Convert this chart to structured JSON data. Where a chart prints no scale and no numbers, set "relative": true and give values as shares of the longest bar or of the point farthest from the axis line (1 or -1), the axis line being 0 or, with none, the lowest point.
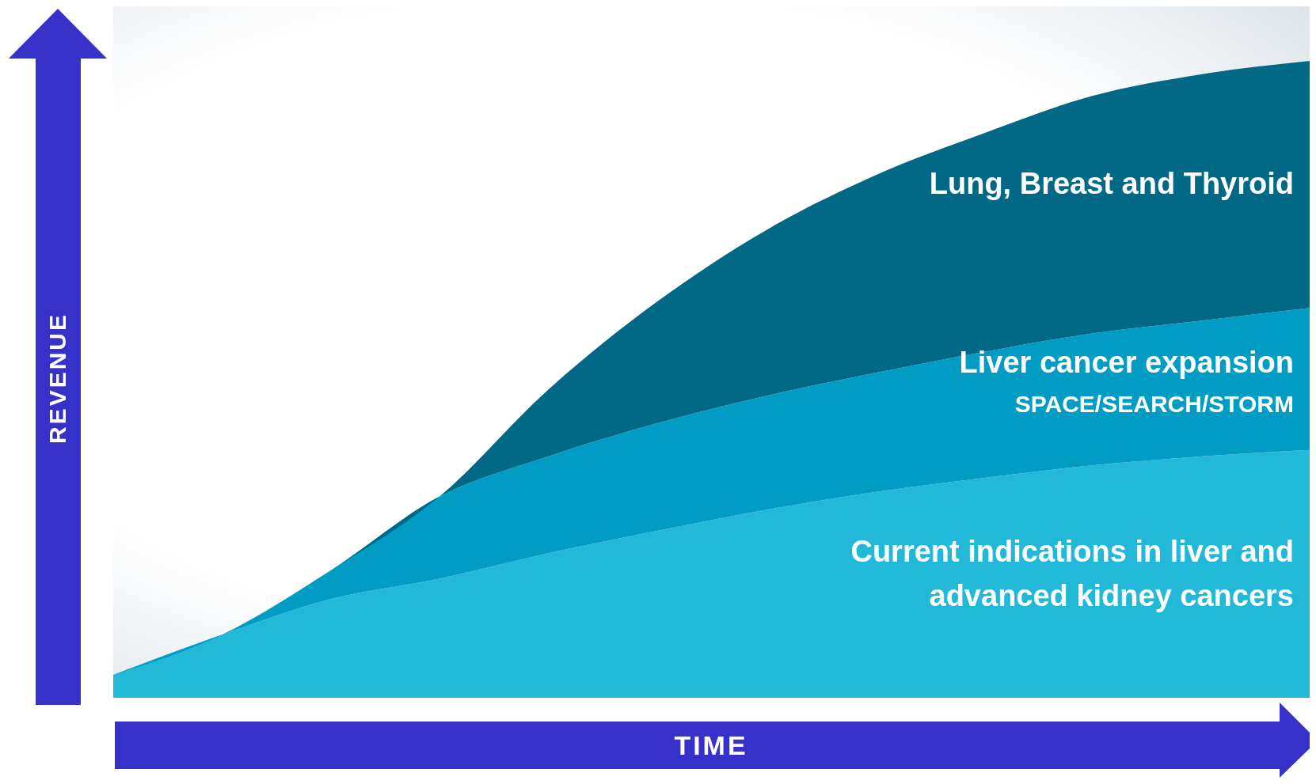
{
  "chart_data": {
    "type": "area",
    "relative": true,
    "stacked": true,
    "xlabel": "TIME",
    "ylabel": "REVENUE",
    "grid": false,
    "categories": [
      null,
      null,
      null,
      null,
      null,
      null,
      null,
      null,
      null,
      null,
      null,
      null
    ],
    "series": [
      {
        "name": "Current indications in liver and advanced kidney cancers",
        "color": "#22b8d8",
        "values": [
          0.036,
          0.099,
          0.155,
          0.187,
          0.227,
          0.262,
          0.295,
          0.323,
          0.345,
          0.365,
          0.379,
          0.389
        ]
      },
      {
        "name": "Liver cancer expansion",
        "color": "#019cc4",
        "values": [
          0,
          0,
          0.045,
          0.129,
          0.152,
          0.169,
          0.179,
          0.187,
          0.198,
          0.207,
          0.213,
          0.223
        ]
      },
      {
        "name": "Lung, Breast and Thyroid",
        "color": "#016985",
        "values": [
          0,
          0,
          0,
          0,
          0.105,
          0.191,
          0.26,
          0.31,
          0.343,
          0.373,
          0.387,
          0.388
        ]
      }
    ],
    "annotations": [
      {
        "text": "SPACE/SEARCH/STORM"
      }
    ]
  }
}
